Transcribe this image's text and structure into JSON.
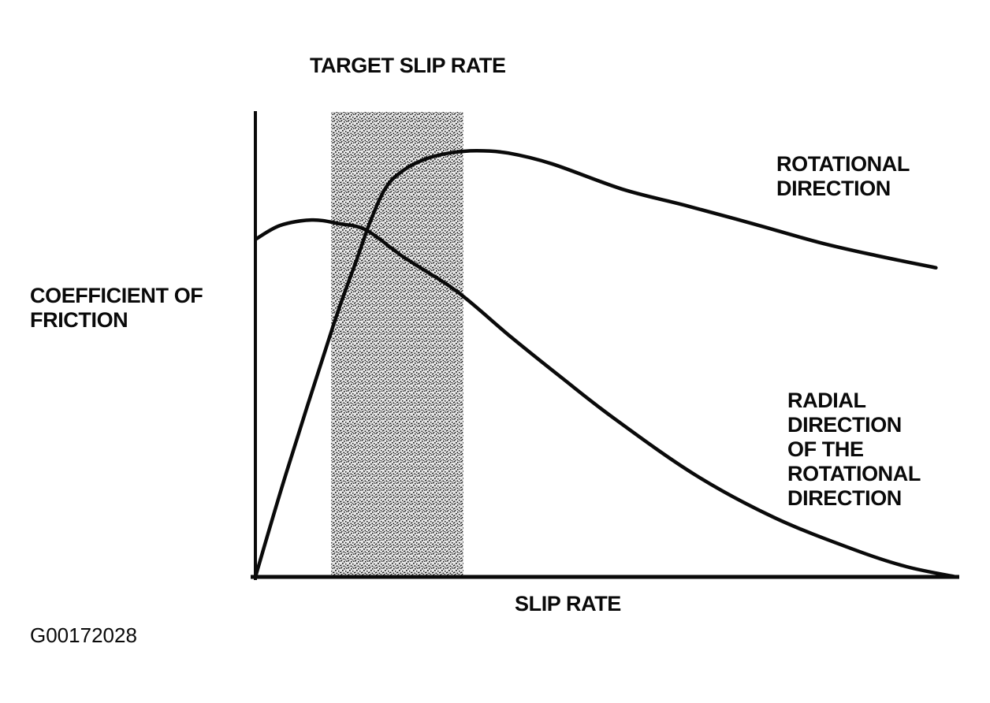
{
  "figure": {
    "title": "TARGET SLIP RATE",
    "y_axis_label": "COEFFICIENT OF\nFRICTION",
    "x_axis_label": "SLIP RATE",
    "figure_id": "G00172028"
  },
  "labels": {
    "rotational": "ROTATIONAL\nDIRECTION",
    "radial": "RADIAL\nDIRECTION\nOF THE\nROTATIONAL\nDIRECTION"
  },
  "colors": {
    "ink": "#0a0a0a",
    "paper": "#ffffff",
    "band_base": "#e8e8e8",
    "band_dot": "#161616"
  },
  "chart_data": {
    "type": "line",
    "title": "TARGET SLIP RATE",
    "xlabel": "SLIP RATE",
    "ylabel": "COEFFICIENT OF FRICTION",
    "grid": false,
    "axis_ticks": "none (qualitative diagram, normalized 0-1 scale)",
    "xlim": [
      0,
      1
    ],
    "ylim": [
      0,
      1
    ],
    "target_band_x": [
      0.108,
      0.296
    ],
    "legend_position": "labels printed beside each curve",
    "series": [
      {
        "name": "ROTATIONAL DIRECTION",
        "points": [
          [
            0.0,
            0.0
          ],
          [
            0.044,
            0.224
          ],
          [
            0.111,
            0.542
          ],
          [
            0.144,
            0.682
          ],
          [
            0.164,
            0.767
          ],
          [
            0.186,
            0.839
          ],
          [
            0.211,
            0.876
          ],
          [
            0.242,
            0.9
          ],
          [
            0.276,
            0.913
          ],
          [
            0.315,
            0.918
          ],
          [
            0.36,
            0.913
          ],
          [
            0.422,
            0.89
          ],
          [
            0.523,
            0.835
          ],
          [
            0.613,
            0.8
          ],
          [
            0.708,
            0.761
          ],
          [
            0.804,
            0.72
          ],
          [
            0.888,
            0.691
          ],
          [
            0.969,
            0.666
          ]
        ]
      },
      {
        "name": "RADIAL DIRECTION OF THE ROTATIONAL DIRECTION",
        "points": [
          [
            0.001,
            0.728
          ],
          [
            0.035,
            0.757
          ],
          [
            0.08,
            0.769
          ],
          [
            0.119,
            0.761
          ],
          [
            0.158,
            0.747
          ],
          [
            0.212,
            0.688
          ],
          [
            0.287,
            0.615
          ],
          [
            0.363,
            0.518
          ],
          [
            0.437,
            0.428
          ],
          [
            0.512,
            0.34
          ],
          [
            0.627,
            0.219
          ],
          [
            0.74,
            0.127
          ],
          [
            0.852,
            0.059
          ],
          [
            0.927,
            0.022
          ],
          [
            0.998,
            0.0
          ]
        ]
      }
    ],
    "annotations": [
      "shaded stippled vertical band marks the target slip rate range",
      "curves cross inside the target band at approximately (0.16, 0.75)"
    ]
  }
}
